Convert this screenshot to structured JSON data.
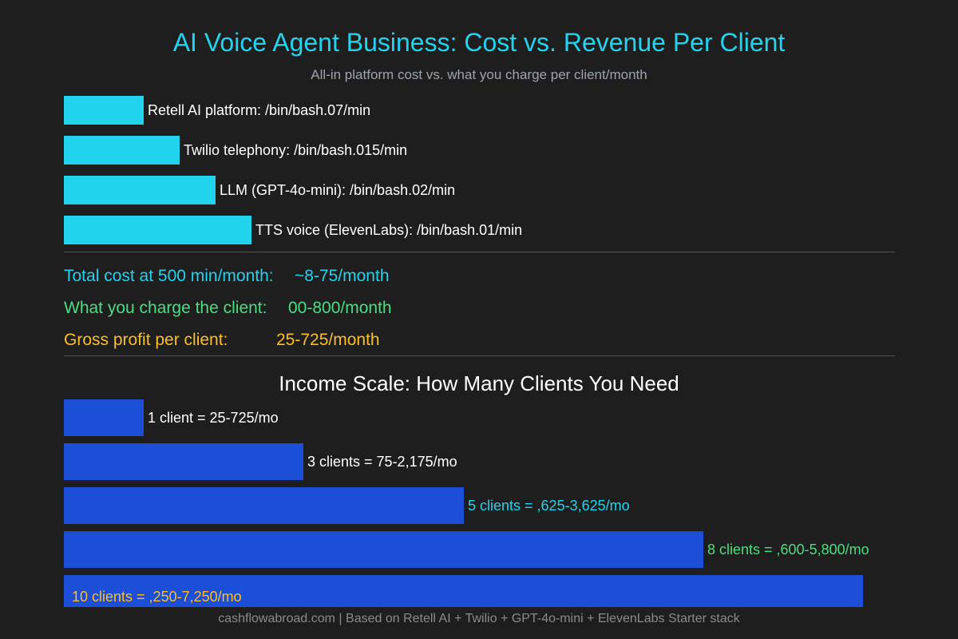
{
  "title": "AI Voice Agent Business: Cost vs. Revenue Per Client",
  "subtitle": "All-in platform cost vs. what you charge per client/month",
  "colors": {
    "cost_bar": "#22d3ee",
    "income_bar": "#1d4ed8",
    "cyan": "#22d3ee",
    "green": "#4ade80",
    "yellow": "#fbbf24",
    "white": "#ffffff"
  },
  "summary": {
    "total_cost_label": "Total cost at 500 min/month:",
    "total_cost_value": "~8-75/month",
    "charge_label": "What you charge the client:",
    "charge_value": "00-800/month",
    "profit_label": "Gross profit per client:",
    "profit_value": "25-725/month"
  },
  "section_title": "Income Scale: How Many Clients You Need",
  "footer": "cashflowabroad.com | Based on Retell AI + Twilio + GPT-4o-mini + ElevenLabs Starter stack",
  "chart_data": [
    {
      "type": "bar",
      "orientation": "horizontal",
      "categories": [
        "Retell AI platform: /bin/bash.07/min",
        "Twilio telephony: /bin/bash.015/min",
        "LLM (GPT-4o-mini): /bin/bash.02/min",
        "TTS voice (ElevenLabs): /bin/bash.01/min"
      ],
      "values": [
        1,
        1.45,
        1.9,
        2.35
      ],
      "xlim": [
        0,
        10
      ],
      "label_colors": [
        "white",
        "white",
        "white",
        "white"
      ],
      "title": "",
      "xlabel": "",
      "ylabel": ""
    },
    {
      "type": "bar",
      "orientation": "horizontal",
      "title": "Income Scale: How Many Clients You Need",
      "categories": [
        "1 client = 25-725/mo",
        "3 clients = 75-2,175/mo",
        "5 clients = ,625-3,625/mo",
        "8 clients = ,600-5,800/mo",
        "10 clients = ,250-7,250/mo"
      ],
      "values": [
        1,
        3,
        5,
        8,
        10
      ],
      "xlim": [
        0,
        10
      ],
      "label_colors": [
        "white",
        "white",
        "cyan",
        "green",
        "yellow"
      ],
      "xlabel": "",
      "ylabel": ""
    }
  ]
}
